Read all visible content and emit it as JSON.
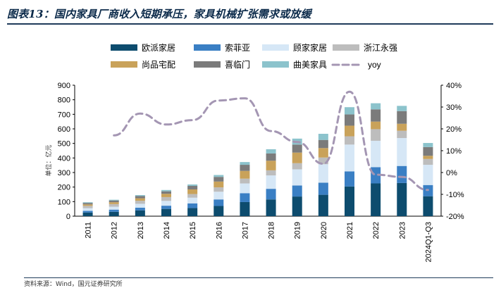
{
  "title": "图表13：国内家具厂商收入短期承压，家具机械扩张需求或放缓",
  "source": "资料来源：Wind，国元证券研究所",
  "chart_data": {
    "type": "bar",
    "stacked": true,
    "categories": [
      "2011",
      "2012",
      "2013",
      "2014",
      "2015",
      "2016",
      "2017",
      "2018",
      "2019",
      "2020",
      "2021",
      "2022",
      "2023",
      "2024Q1-Q3"
    ],
    "ylabel": "单位：亿元",
    "ylim": [
      0,
      900
    ],
    "yticks": [
      0,
      100,
      200,
      300,
      400,
      500,
      600,
      700,
      800,
      900
    ],
    "y2lim": [
      -20,
      40
    ],
    "y2ticks": [
      "-20%",
      "-10%",
      "0%",
      "10%",
      "20%",
      "30%",
      "40%"
    ],
    "series": [
      {
        "name": "欧派家居",
        "color": "#0d4c6e",
        "values": [
          25,
          30,
          40,
          50,
          56,
          70,
          97,
          115,
          135,
          147,
          204,
          225,
          228,
          137
        ]
      },
      {
        "name": "索菲亚",
        "color": "#3a7fc4",
        "values": [
          12,
          15,
          18,
          22,
          32,
          45,
          61,
          73,
          76,
          83,
          104,
          112,
          117,
          77
        ]
      },
      {
        "name": "顾家家居",
        "color": "#d6e7f6",
        "values": [
          18,
          20,
          27,
          33,
          39,
          53,
          67,
          92,
          111,
          127,
          184,
          181,
          192,
          139
        ]
      },
      {
        "name": "浙江永强",
        "color": "#bdbdbd",
        "values": [
          16,
          18,
          21,
          26,
          25,
          30,
          33,
          35,
          42,
          46,
          57,
          80,
          50,
          40
        ]
      },
      {
        "name": "尚品宅配",
        "color": "#c9a25a",
        "values": [
          10,
          13,
          17,
          23,
          32,
          40,
          53,
          66,
          73,
          65,
          73,
          52,
          48,
          22
        ]
      },
      {
        "name": "喜临门",
        "color": "#7b7b7b",
        "values": [
          10,
          12,
          15,
          17,
          24,
          32,
          42,
          50,
          55,
          56,
          77,
          84,
          87,
          60
        ]
      },
      {
        "name": "曲美家具",
        "color": "#8cc3cc",
        "values": [
          5,
          5,
          7,
          9,
          10,
          13,
          19,
          29,
          41,
          42,
          50,
          42,
          36,
          28
        ]
      }
    ],
    "line": {
      "name": "yoy",
      "color": "#a496b3",
      "axis": "right",
      "dashed": true,
      "values": [
        null,
        17,
        27,
        22,
        24,
        33,
        34,
        19,
        14,
        4,
        37,
        -1,
        -2,
        -8
      ]
    }
  }
}
